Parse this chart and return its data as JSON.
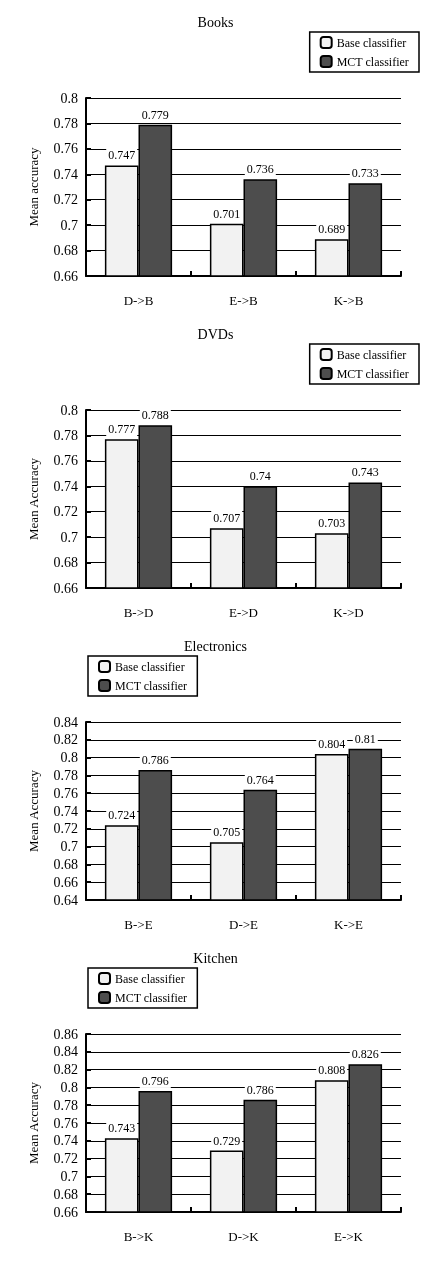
{
  "chart_data": [
    {
      "type": "bar",
      "title": "Books",
      "ylabel": "Mean accuracy",
      "categories": [
        "D->B",
        "E->B",
        "K->B"
      ],
      "series": [
        {
          "name": "Base classifier",
          "color": "#f2f2f2",
          "values": [
            0.747,
            0.701,
            0.689
          ]
        },
        {
          "name": "MCT classifier",
          "color": "#4d4d4d",
          "values": [
            0.779,
            0.736,
            0.733
          ]
        }
      ],
      "ylim": [
        0.66,
        0.8
      ],
      "yticks": [
        0.66,
        0.68,
        0.7,
        0.72,
        0.74,
        0.76,
        0.78,
        0.8
      ],
      "grid": "y",
      "legend": "top right",
      "data_labels": true
    },
    {
      "type": "bar",
      "title": "DVDs",
      "ylabel": "Mean Accuracy",
      "categories": [
        "B->D",
        "E->D",
        "K->D"
      ],
      "series": [
        {
          "name": "Base classifier",
          "color": "#f2f2f2",
          "values": [
            0.777,
            0.707,
            0.703
          ]
        },
        {
          "name": "MCT classifier",
          "color": "#4d4d4d",
          "values": [
            0.788,
            0.74,
            0.743
          ]
        }
      ],
      "ylim": [
        0.66,
        0.8
      ],
      "yticks": [
        0.66,
        0.68,
        0.7,
        0.72,
        0.74,
        0.76,
        0.78,
        0.8
      ],
      "grid": "y",
      "legend": "top right",
      "data_labels": true
    },
    {
      "type": "bar",
      "title": "Electronics",
      "ylabel": "Mean Accuracy",
      "categories": [
        "B->E",
        "D->E",
        "K->E"
      ],
      "series": [
        {
          "name": "Base classifier",
          "color": "#f2f2f2",
          "values": [
            0.724,
            0.705,
            0.804
          ]
        },
        {
          "name": "MCT classifier",
          "color": "#4d4d4d",
          "values": [
            0.786,
            0.764,
            0.81
          ]
        }
      ],
      "ylim": [
        0.64,
        0.84
      ],
      "yticks": [
        0.64,
        0.66,
        0.68,
        0.7,
        0.72,
        0.74,
        0.76,
        0.78,
        0.8,
        0.82,
        0.84
      ],
      "grid": "y",
      "legend": "top left",
      "data_labels": true
    },
    {
      "type": "bar",
      "title": "Kitchen",
      "ylabel": "Mean Accuracy",
      "categories": [
        "B->K",
        "D->K",
        "E->K"
      ],
      "series": [
        {
          "name": "Base classifier",
          "color": "#f2f2f2",
          "values": [
            0.743,
            0.729,
            0.808
          ]
        },
        {
          "name": "MCT classifier",
          "color": "#4d4d4d",
          "values": [
            0.796,
            0.786,
            0.826
          ]
        }
      ],
      "ylim": [
        0.66,
        0.86
      ],
      "yticks": [
        0.66,
        0.68,
        0.7,
        0.72,
        0.74,
        0.76,
        0.78,
        0.8,
        0.82,
        0.84,
        0.86
      ],
      "grid": "y",
      "legend": "top left",
      "data_labels": true
    }
  ]
}
